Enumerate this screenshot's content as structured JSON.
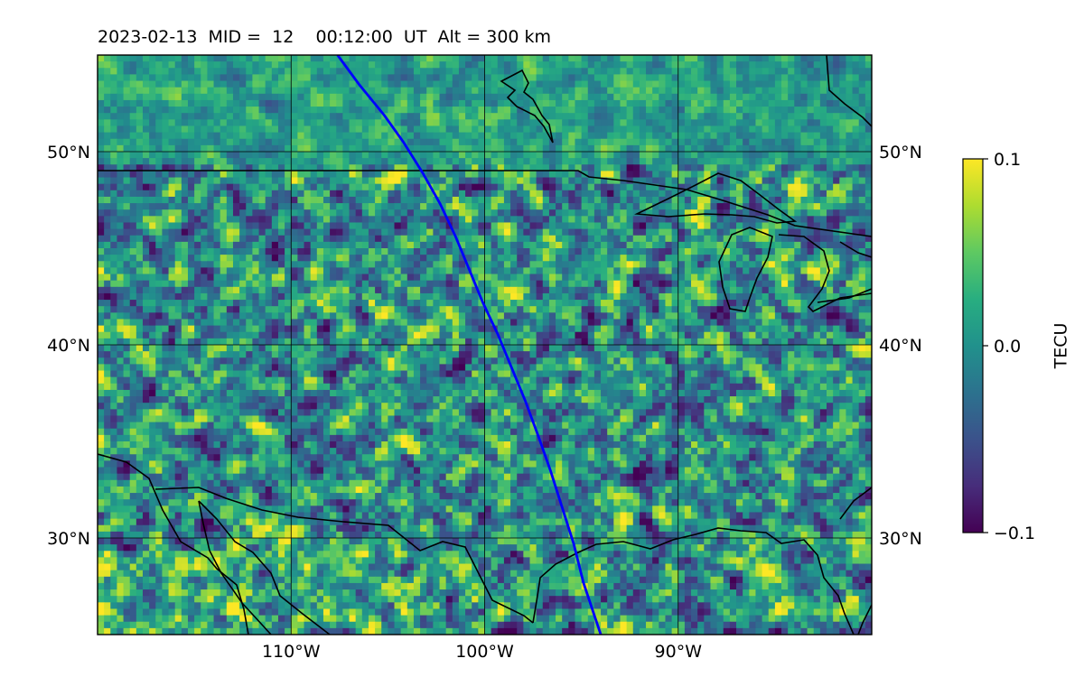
{
  "figure": {
    "title": "2023-02-13  MID =  12    00:12:00  UT  Alt = 300 km"
  },
  "map": {
    "projection": "equirectangular",
    "lon_range": [
      -120,
      -80
    ],
    "lat_range": [
      25,
      55
    ],
    "grid": true,
    "lon_ticks": [
      {
        "value": -110,
        "label": "110°W"
      },
      {
        "value": -100,
        "label": "100°W"
      },
      {
        "value": -90,
        "label": "90°W"
      }
    ],
    "lat_ticks": [
      {
        "value": 50,
        "label": "50°N"
      },
      {
        "value": 40,
        "label": "40°N"
      },
      {
        "value": 30,
        "label": "30°N"
      }
    ],
    "track_color": "#0000ff",
    "track": [
      [
        -107.6,
        55.0
      ],
      [
        -106.5,
        53.5
      ],
      [
        -105.2,
        51.9
      ],
      [
        -104.2,
        50.5
      ],
      [
        -103.2,
        48.9
      ],
      [
        -102.3,
        47.3
      ],
      [
        -101.5,
        45.6
      ],
      [
        -100.8,
        43.9
      ],
      [
        -100.1,
        42.2
      ],
      [
        -99.3,
        40.5
      ],
      [
        -98.6,
        38.8
      ],
      [
        -97.9,
        37.1
      ],
      [
        -97.2,
        35.2
      ],
      [
        -96.6,
        33.5
      ],
      [
        -96.0,
        31.6
      ],
      [
        -95.4,
        29.7
      ],
      [
        -94.9,
        27.7
      ],
      [
        -94.3,
        25.9
      ],
      [
        -94.0,
        25.0
      ]
    ]
  },
  "colorbar": {
    "label": "TECU",
    "colormap": "viridis",
    "min": -0.1,
    "max": 0.1,
    "ticks": [
      {
        "value": 0.1,
        "label": "0.1"
      },
      {
        "value": 0.0,
        "label": "0.0"
      },
      {
        "value": -0.1,
        "label": "−0.1"
      }
    ]
  }
}
